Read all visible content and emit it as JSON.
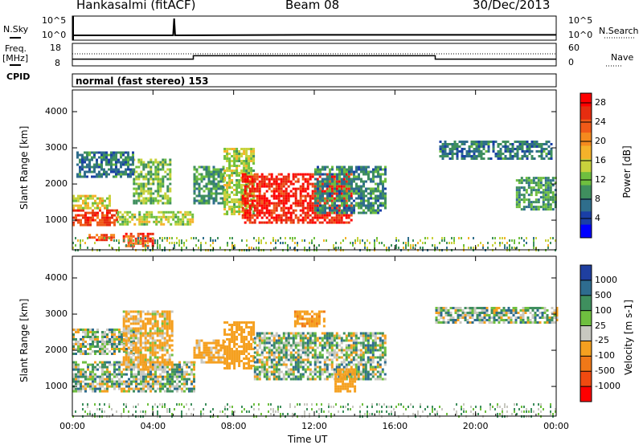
{
  "header": {
    "station": "Hankasalmi (fitACF)",
    "beam": "Beam 08",
    "date": "30/Dec/2013"
  },
  "left_labels": {
    "nsky": "N.Sky",
    "nsky_hi": "10^5",
    "nsky_lo": "10^0",
    "freq": "Freq.",
    "freq_unit": "[MHz]",
    "freq_hi": "18",
    "freq_lo": "8",
    "cpid": "CPID"
  },
  "right_labels": {
    "nsearch": "N.Search",
    "nsearch_hi": "10^5",
    "nsearch_lo": "10^0",
    "nave": "Nave",
    "nave_hi": "60",
    "nave_lo": "0"
  },
  "cpid_text": "normal (fast stereo) 153",
  "colors": {
    "power_scale": [
      "#0000ff",
      "#1a3fa6",
      "#2f6e8c",
      "#3f8f5e",
      "#6fbf3f",
      "#c8d23c",
      "#f5b22a",
      "#f58a1e",
      "#f05a18",
      "#e62d10",
      "#ff0000"
    ],
    "velocity_scale": [
      "#1f3fa0",
      "#2e6c8f",
      "#3f8f5e",
      "#6fbf3f",
      "#c8c8c0",
      "#f5a020",
      "#f07818",
      "#f04a10",
      "#ff0000"
    ]
  },
  "chart_data": [
    {
      "type": "heatmap",
      "name": "power",
      "title": "",
      "xlabel": "",
      "ylabel": "Slant Range [km]",
      "colorbar_label": "Power [dB]",
      "colorbar_ticks": [
        "4",
        "8",
        "12",
        "16",
        "20",
        "24",
        "28"
      ],
      "x_ticks": [
        "00:00",
        "04:00",
        "08:00",
        "12:00",
        "16:00",
        "20:00",
        "00:00"
      ],
      "y_ticks": [
        "1000",
        "2000",
        "3000",
        "4000"
      ],
      "xlim": [
        0,
        24
      ],
      "ylim": [
        180,
        4600
      ],
      "zlim": [
        0,
        30
      ],
      "patches": [
        {
          "t": [
            0.0,
            2.2
          ],
          "r": [
            850,
            1300
          ],
          "z": 26
        },
        {
          "t": [
            0.0,
            1.8
          ],
          "r": [
            1350,
            1700
          ],
          "z": 16
        },
        {
          "t": [
            2.2,
            6.0
          ],
          "r": [
            900,
            1250
          ],
          "z": 14
        },
        {
          "t": [
            3.0,
            4.8
          ],
          "r": [
            1500,
            2700
          ],
          "z": 12
        },
        {
          "t": [
            0.2,
            3.0
          ],
          "r": [
            2200,
            2900
          ],
          "z": 7
        },
        {
          "t": [
            0.8,
            2.0
          ],
          "r": [
            450,
            620
          ],
          "z": 25
        },
        {
          "t": [
            2.5,
            4.0
          ],
          "r": [
            300,
            650
          ],
          "z": 26
        },
        {
          "t": [
            6.0,
            7.5
          ],
          "r": [
            1500,
            2500
          ],
          "z": 9
        },
        {
          "t": [
            7.5,
            9.0
          ],
          "r": [
            1200,
            3000
          ],
          "z": 14
        },
        {
          "t": [
            8.4,
            13.8
          ],
          "r": [
            950,
            2300
          ],
          "z": 28
        },
        {
          "t": [
            12.0,
            15.5
          ],
          "r": [
            1200,
            2500
          ],
          "z": 8
        },
        {
          "t": [
            18.2,
            23.8
          ],
          "r": [
            2700,
            3200
          ],
          "z": 7
        },
        {
          "t": [
            22.0,
            24.0
          ],
          "r": [
            1300,
            2200
          ],
          "z": 9
        }
      ]
    },
    {
      "type": "heatmap",
      "name": "velocity",
      "title": "",
      "xlabel": "Time UT",
      "ylabel": "Slant Range [km]",
      "colorbar_label": "Velocity [m s-1]",
      "colorbar_ticks": [
        "1000",
        "500",
        "100",
        "25",
        "-25",
        "-100",
        "-500",
        "-1000"
      ],
      "x_ticks": [
        "00:00",
        "04:00",
        "08:00",
        "12:00",
        "16:00",
        "20:00",
        "00:00"
      ],
      "y_ticks": [
        "1000",
        "2000",
        "3000",
        "4000"
      ],
      "xlim": [
        0,
        24
      ],
      "ylim": [
        180,
        4600
      ],
      "zlim": [
        -1000,
        1000
      ],
      "patches": [
        {
          "t": [
            0.0,
            6.0
          ],
          "r": [
            900,
            1700
          ],
          "z": 0
        },
        {
          "t": [
            0.0,
            3.0
          ],
          "r": [
            1900,
            2600
          ],
          "z": 0
        },
        {
          "t": [
            2.5,
            5.0
          ],
          "r": [
            1500,
            3100
          ],
          "z": -150
        },
        {
          "t": [
            6.0,
            7.5
          ],
          "r": [
            1700,
            2300
          ],
          "z": -200
        },
        {
          "t": [
            7.5,
            9.0
          ],
          "r": [
            1500,
            2800
          ],
          "z": -250
        },
        {
          "t": [
            9.0,
            15.5
          ],
          "r": [
            1200,
            2500
          ],
          "z": 0
        },
        {
          "t": [
            11.0,
            12.5
          ],
          "r": [
            2700,
            3100
          ],
          "z": -400
        },
        {
          "t": [
            13.0,
            14.0
          ],
          "r": [
            850,
            1500
          ],
          "z": -300
        },
        {
          "t": [
            18.0,
            24.0
          ],
          "r": [
            2800,
            3200
          ],
          "z": 0
        }
      ]
    },
    {
      "type": "line",
      "name": "noise_sky_search",
      "x_range": [
        0,
        24
      ],
      "series": [
        {
          "x": [
            0,
            5,
            5.05,
            5.1,
            12,
            24
          ],
          "y": [
            0.2,
            0.2,
            0.9,
            0.2,
            0.22,
            0.22
          ]
        }
      ]
    },
    {
      "type": "line",
      "name": "frequency_nave",
      "x_range": [
        0,
        24
      ],
      "series": [
        {
          "x": [
            0,
            6,
            6,
            18,
            18,
            24
          ],
          "y": [
            11,
            11,
            12.5,
            12.5,
            11,
            11
          ]
        }
      ]
    }
  ]
}
